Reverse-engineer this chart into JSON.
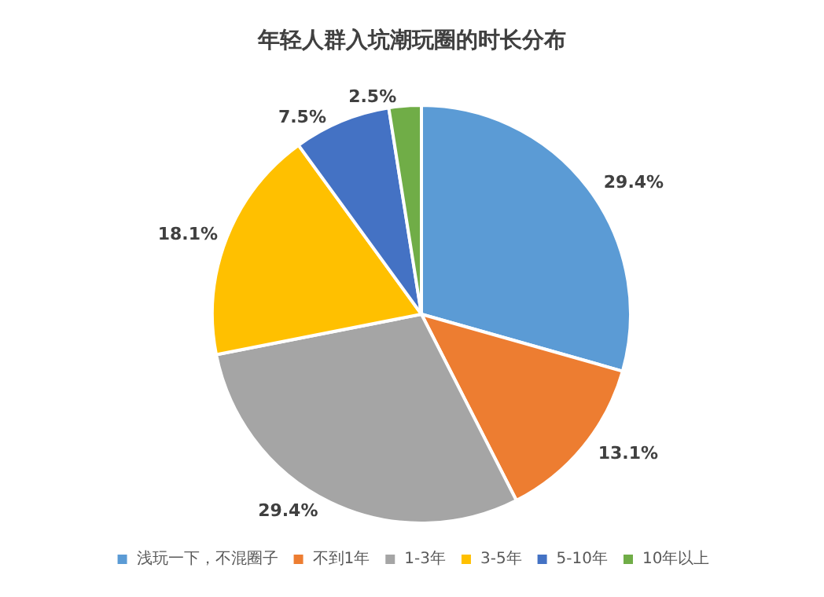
{
  "chart_data": {
    "type": "pie",
    "title": "年轻人群入坑潮玩圈的时长分布",
    "categories": [
      "浅玩一下，不混圈子",
      "不到1年",
      "1-3年",
      "3-5年",
      "5-10年",
      "10年以上"
    ],
    "values": [
      29.4,
      13.1,
      29.4,
      18.1,
      7.5,
      2.5
    ],
    "colors": [
      "#5b9bd5",
      "#ed7d31",
      "#a5a5a5",
      "#ffc000",
      "#4472c4",
      "#70ad47"
    ],
    "value_labels": [
      "29.4%",
      "13.1%",
      "29.4%",
      "18.1%",
      "7.5%",
      "2.5%"
    ],
    "legend": "bottom"
  }
}
